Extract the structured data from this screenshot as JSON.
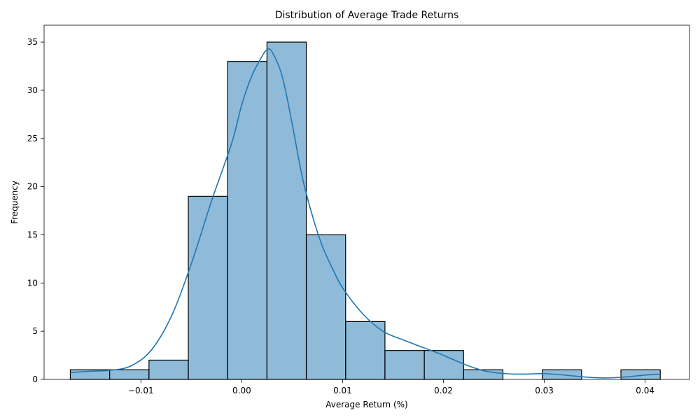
{
  "chart_data": {
    "type": "bar",
    "title": "Distribution of Average Trade Returns",
    "xlabel": "Average Return (%)",
    "ylabel": "Frequency",
    "xlim": [
      -0.0196,
      0.0444
    ],
    "ylim": [
      0,
      36.75
    ],
    "grid": false,
    "legend": "none",
    "bar_color": "#1f77b4",
    "bar_alpha": 0.5,
    "edge_color": "#000000",
    "line_color": "#1f77b4",
    "bins": [
      {
        "start": -0.017,
        "end": -0.0131,
        "count": 1
      },
      {
        "start": -0.0131,
        "end": -0.0092,
        "count": 1
      },
      {
        "start": -0.0092,
        "end": -0.0053,
        "count": 2
      },
      {
        "start": -0.0053,
        "end": -0.0014,
        "count": 19
      },
      {
        "start": -0.0014,
        "end": 0.0025,
        "count": 33
      },
      {
        "start": 0.0025,
        "end": 0.0064,
        "count": 35
      },
      {
        "start": 0.0064,
        "end": 0.0103,
        "count": 15
      },
      {
        "start": 0.0103,
        "end": 0.0142,
        "count": 6
      },
      {
        "start": 0.0142,
        "end": 0.0181,
        "count": 3
      },
      {
        "start": 0.0181,
        "end": 0.022,
        "count": 3
      },
      {
        "start": 0.022,
        "end": 0.0259,
        "count": 1
      },
      {
        "start": 0.0259,
        "end": 0.0298,
        "count": 0
      },
      {
        "start": 0.0298,
        "end": 0.0337,
        "count": 1
      },
      {
        "start": 0.0337,
        "end": 0.0376,
        "count": 0
      },
      {
        "start": 0.0376,
        "end": 0.0415,
        "count": 1
      }
    ],
    "kde": {
      "x": [
        -0.017,
        -0.015,
        -0.013,
        -0.011,
        -0.009,
        -0.007,
        -0.005,
        -0.003,
        -0.001,
        0.0,
        0.001,
        0.002,
        0.0025,
        0.003,
        0.004,
        0.005,
        0.006,
        0.007,
        0.008,
        0.009,
        0.01,
        0.012,
        0.014,
        0.016,
        0.018,
        0.02,
        0.022,
        0.024,
        0.026,
        0.028,
        0.03,
        0.032,
        0.034,
        0.036,
        0.038,
        0.04,
        0.0415
      ],
      "y": [
        0.7,
        0.85,
        0.95,
        1.4,
        3.0,
        6.5,
        12.0,
        18.5,
        24.5,
        28.5,
        31.5,
        33.5,
        34.2,
        34.0,
        31.5,
        26.5,
        21.0,
        17.0,
        13.8,
        11.5,
        9.5,
        6.8,
        5.0,
        4.1,
        3.3,
        2.5,
        1.6,
        0.9,
        0.6,
        0.55,
        0.6,
        0.45,
        0.25,
        0.15,
        0.25,
        0.45,
        0.55
      ]
    },
    "x_ticks": [
      -0.01,
      0.0,
      0.01,
      0.02,
      0.03,
      0.04
    ],
    "x_tick_labels": [
      "−0.01",
      "0.00",
      "0.01",
      "0.02",
      "0.03",
      "0.04"
    ],
    "y_ticks": [
      0,
      5,
      10,
      15,
      20,
      25,
      30,
      35
    ],
    "y_tick_labels": [
      "0",
      "5",
      "10",
      "15",
      "20",
      "25",
      "30",
      "35"
    ]
  }
}
